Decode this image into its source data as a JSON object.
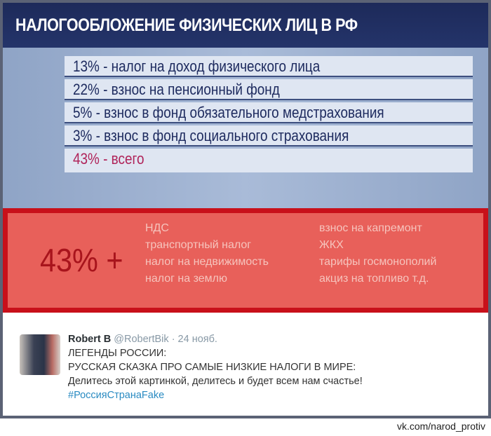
{
  "title": "НАЛОГООБЛОЖЕНИЕ ФИЗИЧЕСКИХ ЛИЦ В РФ",
  "rows": [
    "13% - налог на доход физического лица",
    "22% - взнос на пенсионный фонд",
    "5% - взнос в фонд обязательного медстрахования",
    "3% - взнос в фонд социального страхования",
    "43% - всего"
  ],
  "extra": {
    "big": "43% +",
    "left_col": [
      "НДС",
      "транспортный налог",
      "налог на недвижимость",
      "налог на землю"
    ],
    "right_col": [
      "взнос на капремонт",
      "ЖКХ",
      "тарифы госмонополий",
      "акциз на топливо т.д."
    ]
  },
  "tweet": {
    "name": "Robert B",
    "handle": "@RobertBik",
    "date": "· 24 нояб.",
    "lines": [
      "ЛЕГЕНДЫ РОССИИ:",
      "РУССКАЯ СКАЗКА ПРО САМЫЕ НИЗКИЕ НАЛОГИ В МИРЕ:",
      "Делитесь этой картинкой, делитесь и будет всем нам счастье!"
    ],
    "hashtag": "#РоссияСтранаFake"
  },
  "footer": "vk.com/narod_protiv",
  "colors": {
    "navy": "#1d2a5a",
    "red": "#c8101a",
    "hashtag": "#2a8bc2"
  }
}
